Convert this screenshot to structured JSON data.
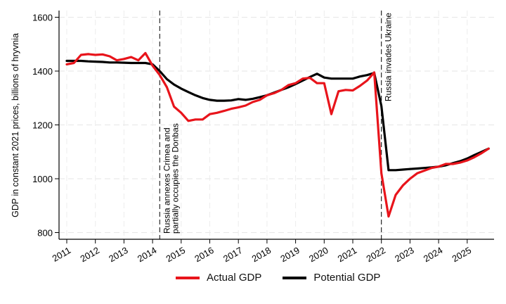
{
  "chart_data": {
    "type": "line",
    "title": "",
    "xlabel": "",
    "ylabel": "GDP in constant 2021 prices, billions of hryvnia",
    "ylim": [
      780,
      1625
    ],
    "yticks": [
      800,
      1000,
      1200,
      1400,
      1600
    ],
    "xlim": [
      2010.75,
      2026.0
    ],
    "xticks": [
      "2011",
      "2012",
      "2013",
      "2014",
      "2015",
      "2016",
      "2017",
      "2018",
      "2019",
      "2020",
      "2021",
      "2022",
      "2023",
      "2024",
      "2025"
    ],
    "grid": true,
    "legend_position": "bottom",
    "x_frequency": "quarterly",
    "x_start": "2011Q1",
    "series": [
      {
        "name": "Actual GDP",
        "color": "#e8141b",
        "values": [
          1425,
          1430,
          1460,
          1463,
          1460,
          1462,
          1455,
          1440,
          1445,
          1452,
          1440,
          1467,
          1420,
          1385,
          1340,
          1268,
          1245,
          1215,
          1220,
          1220,
          1240,
          1245,
          1252,
          1260,
          1265,
          1272,
          1285,
          1293,
          1310,
          1318,
          1330,
          1348,
          1355,
          1372,
          1375,
          1355,
          1355,
          1240,
          1325,
          1330,
          1328,
          1345,
          1365,
          1395,
          1020,
          860,
          940,
          975,
          1000,
          1020,
          1030,
          1040,
          1045,
          1055,
          1055,
          1060,
          1068,
          1080,
          1095,
          1112
        ]
      },
      {
        "name": "Potential GDP",
        "color": "#000000",
        "values": [
          1438,
          1438,
          1438,
          1436,
          1435,
          1434,
          1432,
          1432,
          1431,
          1430,
          1430,
          1430,
          1425,
          1400,
          1370,
          1350,
          1335,
          1322,
          1310,
          1300,
          1293,
          1290,
          1290,
          1291,
          1296,
          1293,
          1297,
          1303,
          1310,
          1320,
          1330,
          1340,
          1352,
          1365,
          1378,
          1390,
          1376,
          1372,
          1372,
          1372,
          1372,
          1380,
          1385,
          1393,
          1270,
          1032,
          1032,
          1034,
          1036,
          1038,
          1040,
          1042,
          1045,
          1050,
          1058,
          1065,
          1075,
          1088,
          1100,
          1112
        ]
      }
    ],
    "annotations": [
      {
        "x": 2014.25,
        "lines": [
          "Russia annexes Crimea and",
          "partially occupies the Donbas"
        ],
        "position": "bottom"
      },
      {
        "x": 2022.0,
        "lines": [
          "Russia invades Ukraine"
        ],
        "position": "top"
      }
    ]
  },
  "legend": {
    "items": [
      {
        "label": "Actual GDP",
        "color": "#e8141b"
      },
      {
        "label": "Potential GDP",
        "color": "#000000"
      }
    ]
  }
}
